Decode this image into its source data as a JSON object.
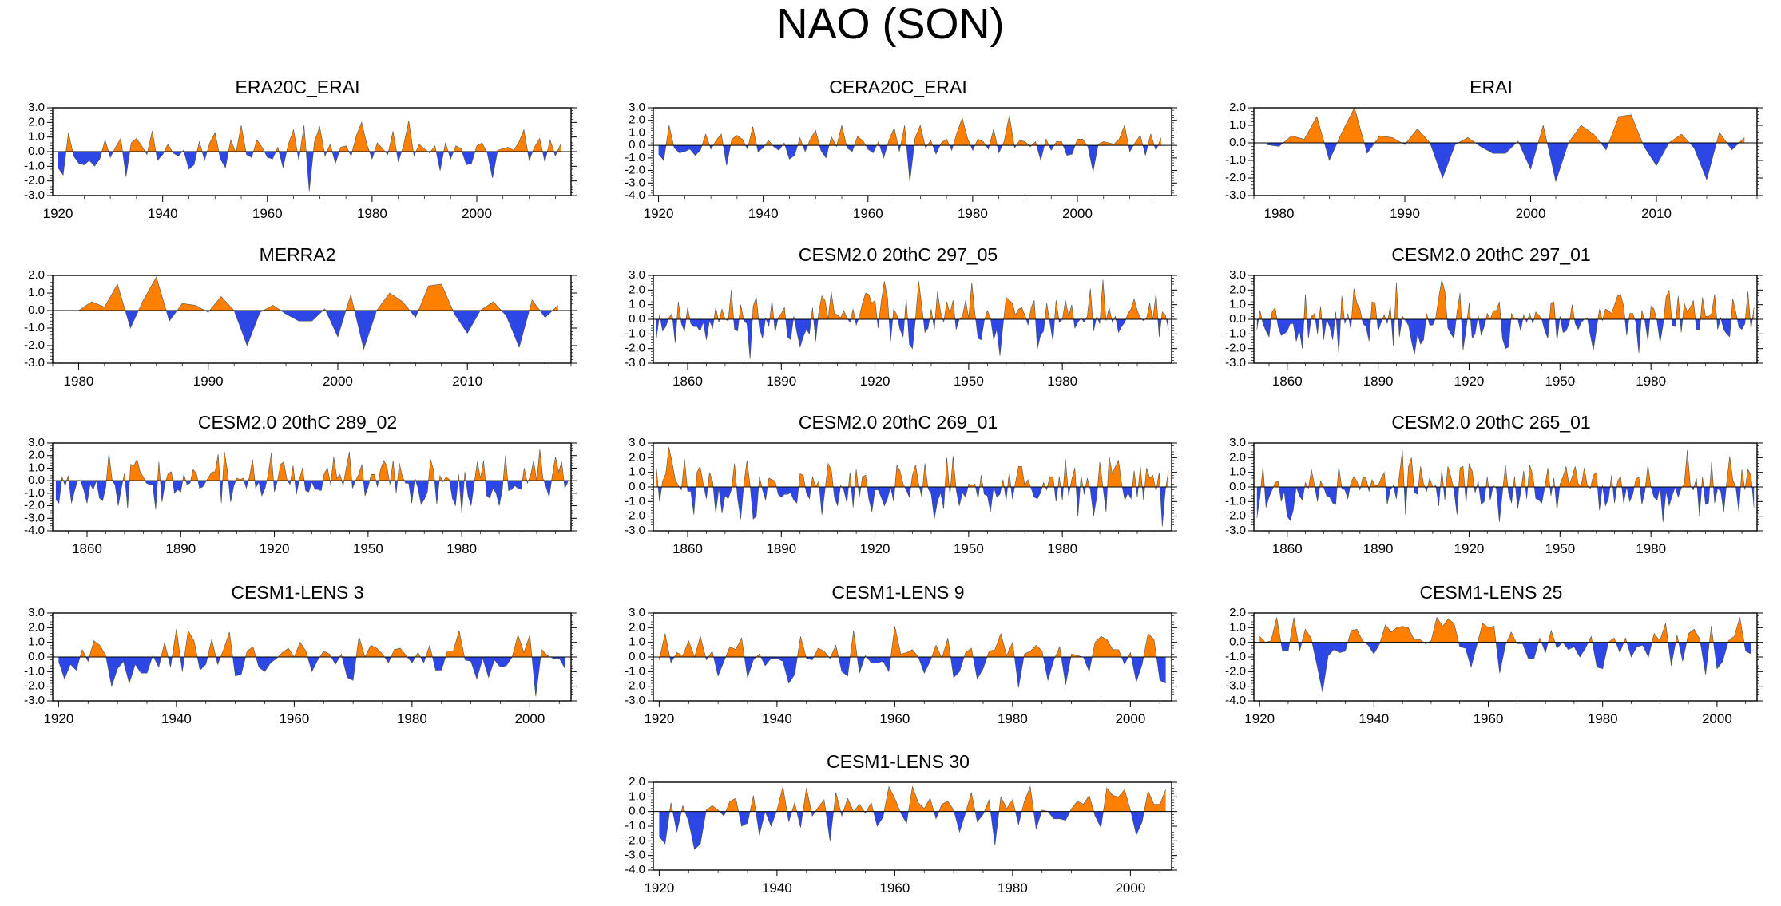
{
  "figure": {
    "title": "NAO (SON)"
  },
  "colors": {
    "positive": "#ff8000",
    "negative": "#2d46e6",
    "frame": "#000000"
  },
  "chart_data": [
    {
      "type": "area",
      "title": "ERA20C_ERAI",
      "xlim": [
        1919,
        2018
      ],
      "ylim": [
        -3,
        3
      ],
      "yticks": [
        "3.0",
        "2.0",
        "1.0",
        "0.0",
        "-1.0",
        "-2.0",
        "-3.0"
      ],
      "xticks": [
        1920,
        1940,
        1960,
        1980,
        2000
      ],
      "x_start": 1920,
      "values": [
        -1.1,
        -1.6,
        1.3,
        -0.3,
        -0.8,
        -0.9,
        -0.6,
        -1.0,
        -0.5,
        0.8,
        -0.4,
        0.3,
        0.9,
        -1.7,
        0.6,
        0.9,
        0.4,
        -0.2,
        1.4,
        -0.6,
        -0.2,
        0.5,
        -0.1,
        -0.3,
        0.1,
        -1.2,
        -0.9,
        0.7,
        -0.6,
        0.6,
        1.3,
        -0.5,
        -1.1,
        0.8,
        -0.1,
        1.8,
        -0.2,
        -0.4,
        0.8,
        0.3,
        -0.4,
        -0.5,
        0.3,
        -1.1,
        0.5,
        1.5,
        -0.6,
        1.8,
        -2.7,
        0.7,
        1.7,
        -0.3,
        0.5,
        -0.8,
        0.3,
        0.4,
        -0.3,
        1.1,
        2.0,
        0.5,
        -0.5,
        0.6,
        0.2,
        -0.2,
        1.4,
        -0.7,
        0.4,
        2.1,
        -0.3,
        0.5,
        0.2,
        -0.1,
        0.4,
        -1.3,
        0.6,
        -0.5,
        0.4,
        0.2,
        -0.9,
        -0.8,
        0.4,
        0.6,
        -0.1,
        -1.8,
        0.1,
        0.2,
        0.3,
        0.1,
        0.6,
        1.5,
        -0.6,
        0.3,
        0.9,
        -0.7,
        0.8,
        -0.3,
        0.5
      ]
    },
    {
      "type": "area",
      "title": "CERA20C_ERAI",
      "xlim": [
        1919,
        2018
      ],
      "ylim": [
        -4,
        3
      ],
      "yticks": [
        "3.0",
        "2.0",
        "1.0",
        "0.0",
        "-1.0",
        "-2.0",
        "-3.0",
        "-4.0"
      ],
      "xticks": [
        1920,
        1940,
        1960,
        1980,
        2000
      ],
      "x_start": 1920,
      "values": [
        -0.7,
        -1.2,
        1.6,
        -0.2,
        -0.6,
        -0.5,
        -0.3,
        -0.8,
        -0.4,
        0.9,
        -0.3,
        0.4,
        0.9,
        -1.6,
        0.5,
        0.8,
        0.5,
        -0.3,
        1.5,
        -0.5,
        -0.2,
        0.4,
        -0.1,
        -0.4,
        0.2,
        -1.1,
        -0.8,
        0.6,
        -0.5,
        0.5,
        1.2,
        -0.4,
        -1.0,
        0.7,
        -0.1,
        1.6,
        -0.2,
        -0.5,
        0.7,
        0.4,
        -0.3,
        -0.6,
        0.3,
        -1.0,
        0.4,
        1.4,
        -0.5,
        1.6,
        -2.9,
        0.6,
        1.6,
        -0.2,
        0.4,
        -0.7,
        0.2,
        0.5,
        -0.4,
        1.0,
        2.2,
        0.6,
        -0.4,
        0.5,
        0.3,
        -0.3,
        1.3,
        -0.6,
        0.3,
        2.4,
        -0.2,
        0.4,
        0.3,
        -0.1,
        0.3,
        -1.2,
        0.5,
        -0.4,
        0.3,
        0.3,
        -0.8,
        -0.7,
        0.5,
        0.5,
        -0.1,
        -2.1,
        0.1,
        0.3,
        0.2,
        0.1,
        0.5,
        1.6,
        -0.5,
        0.2,
        0.8,
        -0.8,
        0.9,
        -0.4,
        0.6
      ]
    },
    {
      "type": "area",
      "title": "ERAI",
      "xlim": [
        1978,
        2018
      ],
      "ylim": [
        -3,
        2
      ],
      "yticks": [
        "2.0",
        "1.0",
        "0.0",
        "-1.0",
        "-2.0",
        "-3.0"
      ],
      "xticks": [
        1980,
        1990,
        2000,
        2010
      ],
      "x_start": 1979,
      "values": [
        -0.1,
        -0.2,
        0.4,
        0.2,
        1.5,
        -1.0,
        0.6,
        2.0,
        -0.6,
        0.4,
        0.3,
        -0.1,
        0.8,
        0.0,
        -2.0,
        -0.1,
        0.3,
        -0.2,
        -0.6,
        -0.6,
        0.1,
        -1.5,
        1.0,
        -2.2,
        0.0,
        1.0,
        0.5,
        -0.4,
        1.5,
        1.6,
        -0.2,
        -1.3,
        0.0,
        0.5,
        -0.3,
        -2.1,
        0.6,
        -0.4,
        0.3
      ]
    },
    {
      "type": "area",
      "title": "MERRA2",
      "xlim": [
        1978,
        2018
      ],
      "ylim": [
        -3,
        2
      ],
      "yticks": [
        "2.0",
        "1.0",
        "0.0",
        "-1.0",
        "-2.0",
        "-3.0"
      ],
      "xticks": [
        1980,
        1990,
        2000,
        2010
      ],
      "x_start": 1980,
      "values": [
        0.0,
        0.5,
        0.2,
        1.5,
        -1.0,
        0.6,
        1.9,
        -0.6,
        0.4,
        0.3,
        -0.1,
        0.8,
        0.0,
        -2.0,
        -0.1,
        0.3,
        -0.2,
        -0.6,
        -0.6,
        0.1,
        -1.5,
        0.9,
        -2.2,
        0.0,
        1.0,
        0.5,
        -0.4,
        1.4,
        1.5,
        -0.2,
        -1.3,
        0.0,
        0.5,
        -0.3,
        -2.1,
        0.6,
        -0.4,
        0.3
      ]
    },
    {
      "type": "area",
      "title": "CESM2.0 20thC 297_05",
      "xlim": [
        1849,
        2015
      ],
      "ylim": [
        -3,
        3
      ],
      "yticks": [
        "3.0",
        "2.0",
        "1.0",
        "0.0",
        "-1.0",
        "-2.0",
        "-3.0"
      ],
      "xticks": [
        1860,
        1890,
        1920,
        1950,
        1980
      ],
      "x_start": 1850,
      "seed": 11,
      "amplitude": 1.45
    },
    {
      "type": "area",
      "title": "CESM2.0 20thC 297_01",
      "xlim": [
        1849,
        2015
      ],
      "ylim": [
        -3,
        3
      ],
      "yticks": [
        "3.0",
        "2.0",
        "1.0",
        "0.0",
        "-1.0",
        "-2.0",
        "-3.0"
      ],
      "xticks": [
        1860,
        1890,
        1920,
        1950,
        1980
      ],
      "x_start": 1850,
      "seed": 23,
      "amplitude": 1.45
    },
    {
      "type": "area",
      "title": "CESM2.0 20thC 289_02",
      "xlim": [
        1849,
        2015
      ],
      "ylim": [
        -4,
        3
      ],
      "yticks": [
        "3.0",
        "2.0",
        "1.0",
        "0.0",
        "-1.0",
        "-2.0",
        "-3.0",
        "-4.0"
      ],
      "xticks": [
        1860,
        1890,
        1920,
        1950,
        1980
      ],
      "x_start": 1850,
      "seed": 37,
      "amplitude": 1.5
    },
    {
      "type": "area",
      "title": "CESM2.0 20thC 269_01",
      "xlim": [
        1849,
        2015
      ],
      "ylim": [
        -3,
        3
      ],
      "yticks": [
        "3.0",
        "2.0",
        "1.0",
        "0.0",
        "-1.0",
        "-2.0",
        "-3.0"
      ],
      "xticks": [
        1860,
        1890,
        1920,
        1950,
        1980
      ],
      "x_start": 1850,
      "seed": 41,
      "amplitude": 1.45
    },
    {
      "type": "area",
      "title": "CESM2.0 20thC 265_01",
      "xlim": [
        1849,
        2015
      ],
      "ylim": [
        -3,
        3
      ],
      "yticks": [
        "3.0",
        "2.0",
        "1.0",
        "0.0",
        "-1.0",
        "-2.0",
        "-3.0"
      ],
      "xticks": [
        1860,
        1890,
        1920,
        1950,
        1980
      ],
      "x_start": 1850,
      "seed": 53,
      "amplitude": 1.45
    },
    {
      "type": "area",
      "title": "CESM1-LENS 3",
      "xlim": [
        1919,
        2007
      ],
      "ylim": [
        -3,
        3
      ],
      "yticks": [
        "3.0",
        "2.0",
        "1.0",
        "0.0",
        "-1.0",
        "-2.0",
        "-3.0"
      ],
      "xticks": [
        1920,
        1940,
        1960,
        1980,
        2000
      ],
      "x_start": 1920,
      "seed": 67,
      "amplitude": 1.3
    },
    {
      "type": "area",
      "title": "CESM1-LENS 9",
      "xlim": [
        1919,
        2007
      ],
      "ylim": [
        -3,
        3
      ],
      "yticks": [
        "3.0",
        "2.0",
        "1.0",
        "0.0",
        "-1.0",
        "-2.0",
        "-3.0"
      ],
      "xticks": [
        1920,
        1940,
        1960,
        1980,
        2000
      ],
      "x_start": 1920,
      "seed": 71,
      "amplitude": 1.3
    },
    {
      "type": "area",
      "title": "CESM1-LENS 25",
      "xlim": [
        1919,
        2007
      ],
      "ylim": [
        -4,
        2
      ],
      "yticks": [
        "2.0",
        "1.0",
        "0.0",
        "-1.0",
        "-2.0",
        "-3.0",
        "-4.0"
      ],
      "xticks": [
        1920,
        1940,
        1960,
        1980,
        2000
      ],
      "x_start": 1920,
      "seed": 83,
      "amplitude": 1.3
    },
    {
      "type": "area",
      "title": "CESM1-LENS 30",
      "xlim": [
        1919,
        2007
      ],
      "ylim": [
        -4,
        2
      ],
      "yticks": [
        "2.0",
        "1.0",
        "0.0",
        "-1.0",
        "-2.0",
        "-3.0",
        "-4.0"
      ],
      "xticks": [
        1920,
        1940,
        1960,
        1980,
        2000
      ],
      "x_start": 1920,
      "seed": 97,
      "amplitude": 1.35
    }
  ]
}
